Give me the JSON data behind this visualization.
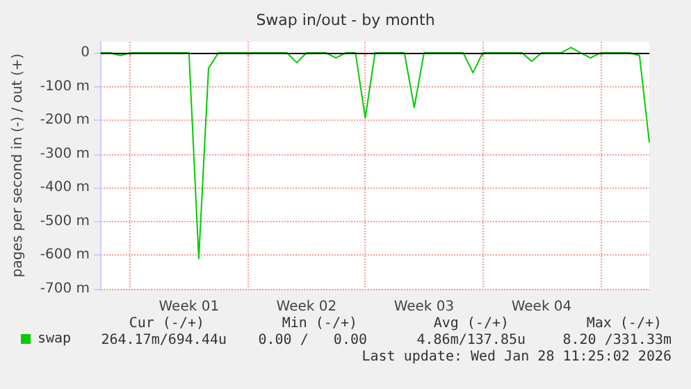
{
  "chart_data": {
    "type": "line",
    "title": "Swap in/out - by month",
    "ylabel": "pages per second in (-) / out (+)",
    "categories": [
      null,
      null,
      null,
      null,
      null,
      null,
      null,
      null,
      null,
      "Week 01",
      null,
      null,
      null,
      null,
      null,
      null,
      null,
      null,
      null,
      null,
      null,
      "Week 02",
      null,
      null,
      null,
      null,
      null,
      null,
      null,
      null,
      null,
      null,
      null,
      "Week 03",
      null,
      null,
      null,
      null,
      null,
      null,
      null,
      null,
      null,
      null,
      null,
      "Week 04",
      null,
      null,
      null,
      null,
      null,
      null,
      null,
      null,
      null,
      null,
      null
    ],
    "series": [
      {
        "name": "swap",
        "color": "#00cc00",
        "values": [
          0,
          0,
          -8,
          0,
          0,
          0,
          0,
          0,
          0,
          0,
          -610,
          -46,
          0,
          0,
          0,
          0,
          0,
          0,
          0,
          0,
          -29,
          0,
          0,
          0,
          -15,
          0,
          0,
          -193,
          0,
          0,
          0,
          0,
          -162,
          0,
          0,
          0,
          0,
          0,
          -59,
          0,
          0,
          0,
          0,
          0,
          -25,
          0,
          0,
          0,
          16,
          0,
          -15,
          0,
          0,
          0,
          0,
          -8,
          -264
        ]
      }
    ],
    "ylim": [
      -700,
      33
    ],
    "yticks": [
      0,
      {
        "value": -100,
        "label": "-100 m"
      },
      {
        "value": -200,
        "label": "-200 m"
      },
      {
        "value": -300,
        "label": "-300 m"
      },
      {
        "value": -400,
        "label": "-400 m"
      },
      {
        "value": -500,
        "label": "-500 m"
      },
      {
        "value": -600,
        "label": "-600 m"
      },
      {
        "value": -700,
        "label": "-700 m"
      }
    ],
    "ref_lines": [
      {
        "axis": "y",
        "value": 0,
        "color": "#000000"
      }
    ],
    "annotations": [
      "Cur (-/+)",
      "Min (-/+)",
      "Avg (-/+)",
      "Max (-/+)",
      "264.17m/694.44u",
      "0.00 /   0.00",
      "4.86m/137.85u",
      "8.20 /331.33m",
      "Last update: Wed Jan 28 11:25:02 2026"
    ],
    "grid": true,
    "legend": "bottom left",
    "marker": "none",
    "line_style": "solid"
  }
}
